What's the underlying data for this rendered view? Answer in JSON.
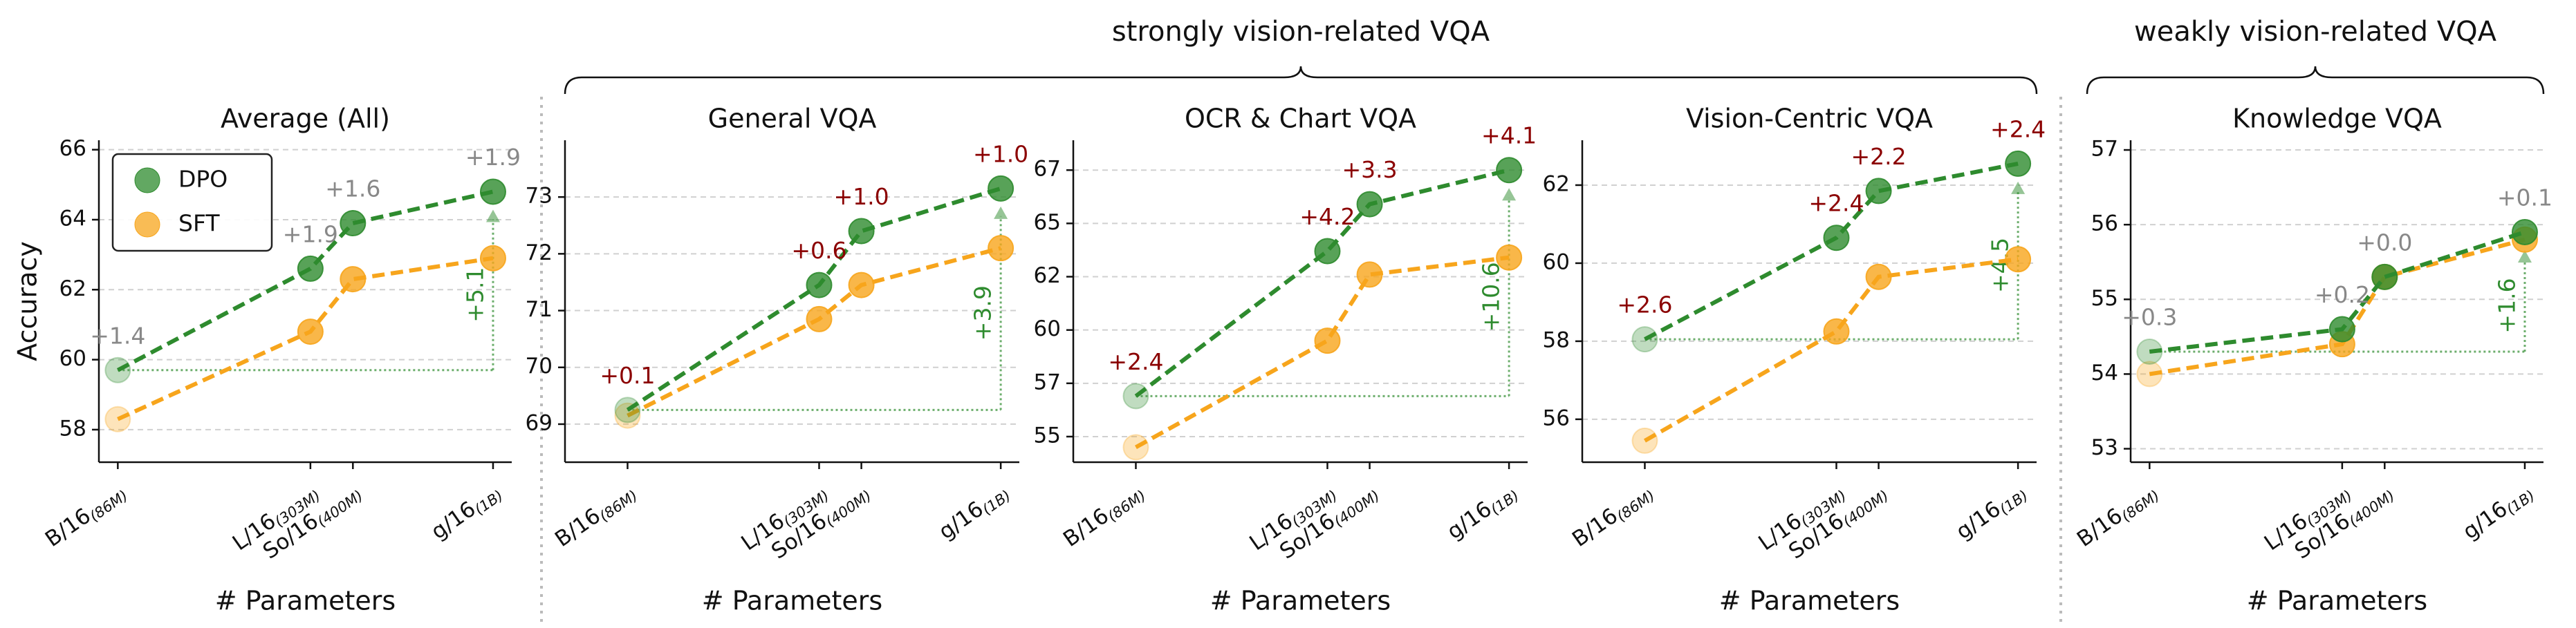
{
  "chart_data": [
    {
      "type": "line",
      "title": "Average (All)",
      "xlabel": "# Parameters",
      "ylabel": "Accuracy",
      "x": [
        86,
        303,
        400,
        1000
      ],
      "xscale": "log",
      "xlim": [
        76,
        1130
      ],
      "xticks": [
        {
          "value": 86,
          "label": "B/16",
          "sublabel": "(86M)"
        },
        {
          "value": 303,
          "label": "L/16",
          "sublabel": "(303M)"
        },
        {
          "value": 400,
          "label": "So/16",
          "sublabel": "(400M)"
        },
        {
          "value": 1000,
          "label": "g/16",
          "sublabel": "(1B)"
        }
      ],
      "ylim": [
        57.07,
        66.27
      ],
      "yticks": [
        58,
        60,
        62,
        64,
        66
      ],
      "grid": true,
      "legend": "upper left",
      "series": [
        {
          "name": "DPO",
          "color": "#2e8b2e",
          "values": [
            59.7,
            62.6,
            63.9,
            64.8
          ]
        },
        {
          "name": "SFT",
          "color": "#f7a51c",
          "values": [
            58.3,
            60.8,
            62.3,
            62.9
          ]
        }
      ],
      "gain_labels": [
        "+1.4",
        "+1.9",
        "+1.6",
        "+1.9"
      ],
      "gain_color": "#888888",
      "gap_label": "+5.1"
    },
    {
      "type": "line",
      "title": "General VQA",
      "xlabel": "# Parameters",
      "x": [
        86,
        303,
        400,
        1000
      ],
      "xscale": "log",
      "xlim": [
        57,
        1130
      ],
      "xticks": [
        {
          "value": 86,
          "label": "B/16",
          "sublabel": "(86M)"
        },
        {
          "value": 303,
          "label": "L/16",
          "sublabel": "(303M)"
        },
        {
          "value": 400,
          "label": "So/16",
          "sublabel": "(400M)"
        },
        {
          "value": 1000,
          "label": "g/16",
          "sublabel": "(1B)"
        }
      ],
      "ylim": [
        68.33,
        74.0
      ],
      "yticks": [
        69,
        70,
        71,
        72,
        73
      ],
      "grid": true,
      "series": [
        {
          "color": "#2e8b2e",
          "values": [
            69.25,
            71.45,
            72.4,
            73.15
          ]
        },
        {
          "color": "#f7a51c",
          "values": [
            69.15,
            70.85,
            71.45,
            72.1
          ]
        }
      ],
      "gain_labels": [
        "+0.1",
        "+0.6",
        "+1.0",
        "+1.0"
      ],
      "gain_color": "#8b0000",
      "gap_label": "+3.9"
    },
    {
      "type": "line",
      "title": "OCR & Chart VQA",
      "xlabel": "# Parameters",
      "x": [
        86,
        303,
        400,
        1000
      ],
      "xscale": "log",
      "xlim": [
        57,
        1130
      ],
      "xticks": [
        {
          "value": 86,
          "label": "B/16",
          "sublabel": "(86M)"
        },
        {
          "value": 303,
          "label": "L/16",
          "sublabel": "(303M)"
        },
        {
          "value": 400,
          "label": "So/16",
          "sublabel": "(400M)"
        },
        {
          "value": 1000,
          "label": "g/16",
          "sublabel": "(1B)"
        }
      ],
      "ylim": [
        53.8,
        68.9
      ],
      "yticks": [
        55,
        {
          "value": 57.5,
          "label": "57"
        },
        60,
        {
          "value": 62.5,
          "label": "62"
        },
        65,
        {
          "value": 67.5,
          "label": "67"
        }
      ],
      "grid": true,
      "series": [
        {
          "color": "#2e8b2e",
          "values": [
            56.9,
            63.7,
            65.9,
            67.5
          ]
        },
        {
          "color": "#f7a51c",
          "values": [
            54.5,
            59.5,
            62.6,
            63.4
          ]
        }
      ],
      "gain_labels": [
        "+2.4",
        "+4.2",
        "+3.3",
        "+4.1"
      ],
      "gain_color": "#8b0000",
      "gap_label": "+10.6"
    },
    {
      "type": "line",
      "title": "Vision-Centric VQA",
      "xlabel": "# Parameters",
      "x": [
        86,
        303,
        400,
        1000
      ],
      "xscale": "log",
      "xlim": [
        57,
        1130
      ],
      "xticks": [
        {
          "value": 86,
          "label": "B/16",
          "sublabel": "(86M)"
        },
        {
          "value": 303,
          "label": "L/16",
          "sublabel": "(303M)"
        },
        {
          "value": 400,
          "label": "So/16",
          "sublabel": "(400M)"
        },
        {
          "value": 1000,
          "label": "g/16",
          "sublabel": "(1B)"
        }
      ],
      "ylim": [
        54.9,
        63.15
      ],
      "yticks": [
        56,
        58,
        60,
        62
      ],
      "grid": true,
      "series": [
        {
          "color": "#2e8b2e",
          "values": [
            58.05,
            60.65,
            61.85,
            62.55
          ]
        },
        {
          "color": "#f7a51c",
          "values": [
            55.45,
            58.25,
            59.65,
            60.1
          ]
        }
      ],
      "gain_labels": [
        "+2.6",
        "+2.4",
        "+2.2",
        "+2.4"
      ],
      "gain_color": "#8b0000",
      "gap_label": "+4.5"
    },
    {
      "type": "line",
      "title": "Knowledge VQA",
      "xlabel": "# Parameters",
      "x": [
        86,
        303,
        400,
        1000
      ],
      "xscale": "log",
      "xlim": [
        76,
        1130
      ],
      "xticks": [
        {
          "value": 86,
          "label": "B/16",
          "sublabel": "(86M)"
        },
        {
          "value": 303,
          "label": "L/16",
          "sublabel": "(303M)"
        },
        {
          "value": 400,
          "label": "So/16",
          "sublabel": "(400M)"
        },
        {
          "value": 1000,
          "label": "g/16",
          "sublabel": "(1B)"
        }
      ],
      "ylim": [
        52.82,
        57.13
      ],
      "yticks": [
        53,
        54,
        55,
        56,
        57
      ],
      "grid": true,
      "series": [
        {
          "color": "#2e8b2e",
          "values": [
            54.3,
            54.6,
            55.3,
            55.9
          ]
        },
        {
          "color": "#f7a51c",
          "values": [
            54.0,
            54.4,
            55.3,
            55.8
          ]
        }
      ],
      "gain_labels": [
        "+0.3",
        "+0.2",
        "+0.0",
        "+0.1"
      ],
      "gain_color": "#888888",
      "gap_label": "+1.6"
    }
  ],
  "groups": [
    {
      "title": "strongly vision-related VQA"
    },
    {
      "title": "weakly vision-related VQA"
    }
  ]
}
